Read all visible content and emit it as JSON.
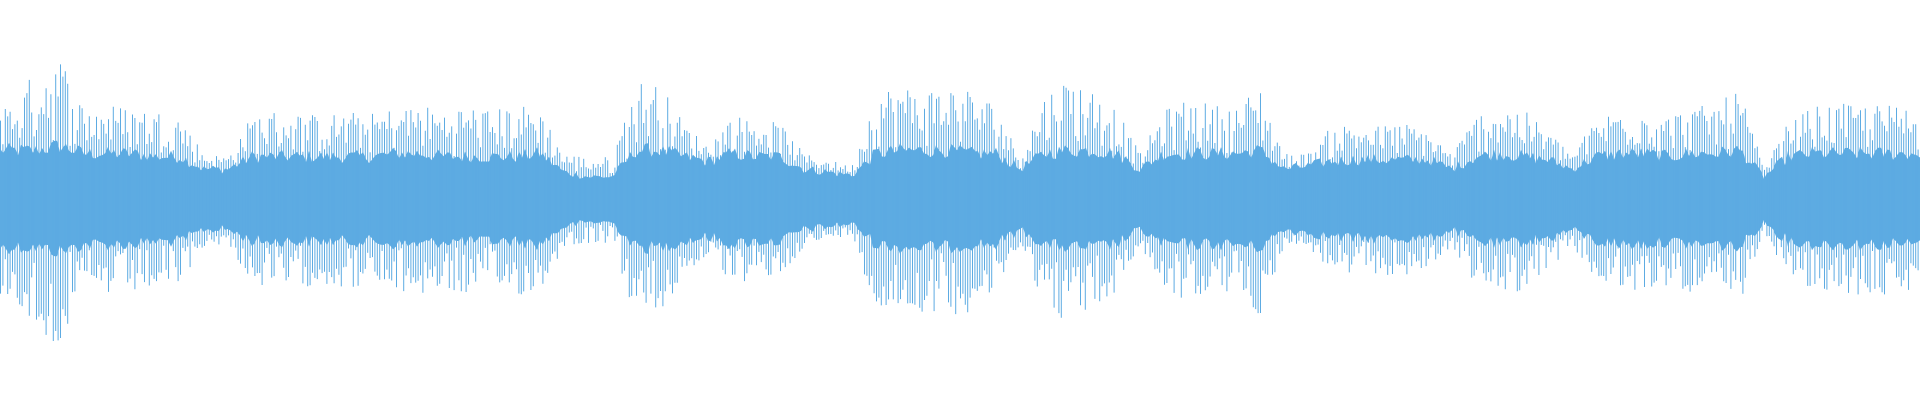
{
  "chart_data": {
    "type": "area",
    "title": "",
    "xlabel": "",
    "ylabel": "",
    "ylim": [
      -1,
      1
    ],
    "grid": false,
    "color": "#5DABE2",
    "segments": 80,
    "peak_envelope": [
      0.62,
      0.85,
      0.95,
      0.6,
      0.62,
      0.6,
      0.58,
      0.55,
      0.3,
      0.28,
      0.55,
      0.58,
      0.56,
      0.55,
      0.57,
      0.56,
      0.6,
      0.62,
      0.58,
      0.62,
      0.58,
      0.62,
      0.6,
      0.3,
      0.28,
      0.28,
      0.78,
      0.75,
      0.5,
      0.35,
      0.55,
      0.52,
      0.5,
      0.3,
      0.26,
      0.22,
      0.72,
      0.74,
      0.72,
      0.75,
      0.72,
      0.62,
      0.28,
      0.68,
      0.8,
      0.72,
      0.6,
      0.3,
      0.58,
      0.66,
      0.62,
      0.6,
      0.75,
      0.3,
      0.3,
      0.48,
      0.5,
      0.48,
      0.5,
      0.45,
      0.3,
      0.55,
      0.62,
      0.58,
      0.45,
      0.3,
      0.52,
      0.6,
      0.6,
      0.55,
      0.6,
      0.62,
      0.72,
      0.2,
      0.5,
      0.6,
      0.62,
      0.62,
      0.62,
      0.6
    ],
    "core_envelope": [
      0.32,
      0.32,
      0.35,
      0.3,
      0.3,
      0.3,
      0.28,
      0.28,
      0.2,
      0.2,
      0.28,
      0.28,
      0.28,
      0.28,
      0.28,
      0.28,
      0.3,
      0.3,
      0.28,
      0.28,
      0.28,
      0.28,
      0.3,
      0.18,
      0.15,
      0.15,
      0.32,
      0.32,
      0.28,
      0.25,
      0.3,
      0.28,
      0.28,
      0.2,
      0.18,
      0.16,
      0.3,
      0.32,
      0.32,
      0.32,
      0.3,
      0.3,
      0.2,
      0.3,
      0.32,
      0.32,
      0.3,
      0.2,
      0.3,
      0.3,
      0.3,
      0.3,
      0.32,
      0.2,
      0.22,
      0.25,
      0.26,
      0.26,
      0.26,
      0.26,
      0.2,
      0.28,
      0.3,
      0.28,
      0.26,
      0.2,
      0.28,
      0.3,
      0.3,
      0.28,
      0.3,
      0.3,
      0.32,
      0.15,
      0.28,
      0.3,
      0.3,
      0.3,
      0.3,
      0.3
    ]
  }
}
